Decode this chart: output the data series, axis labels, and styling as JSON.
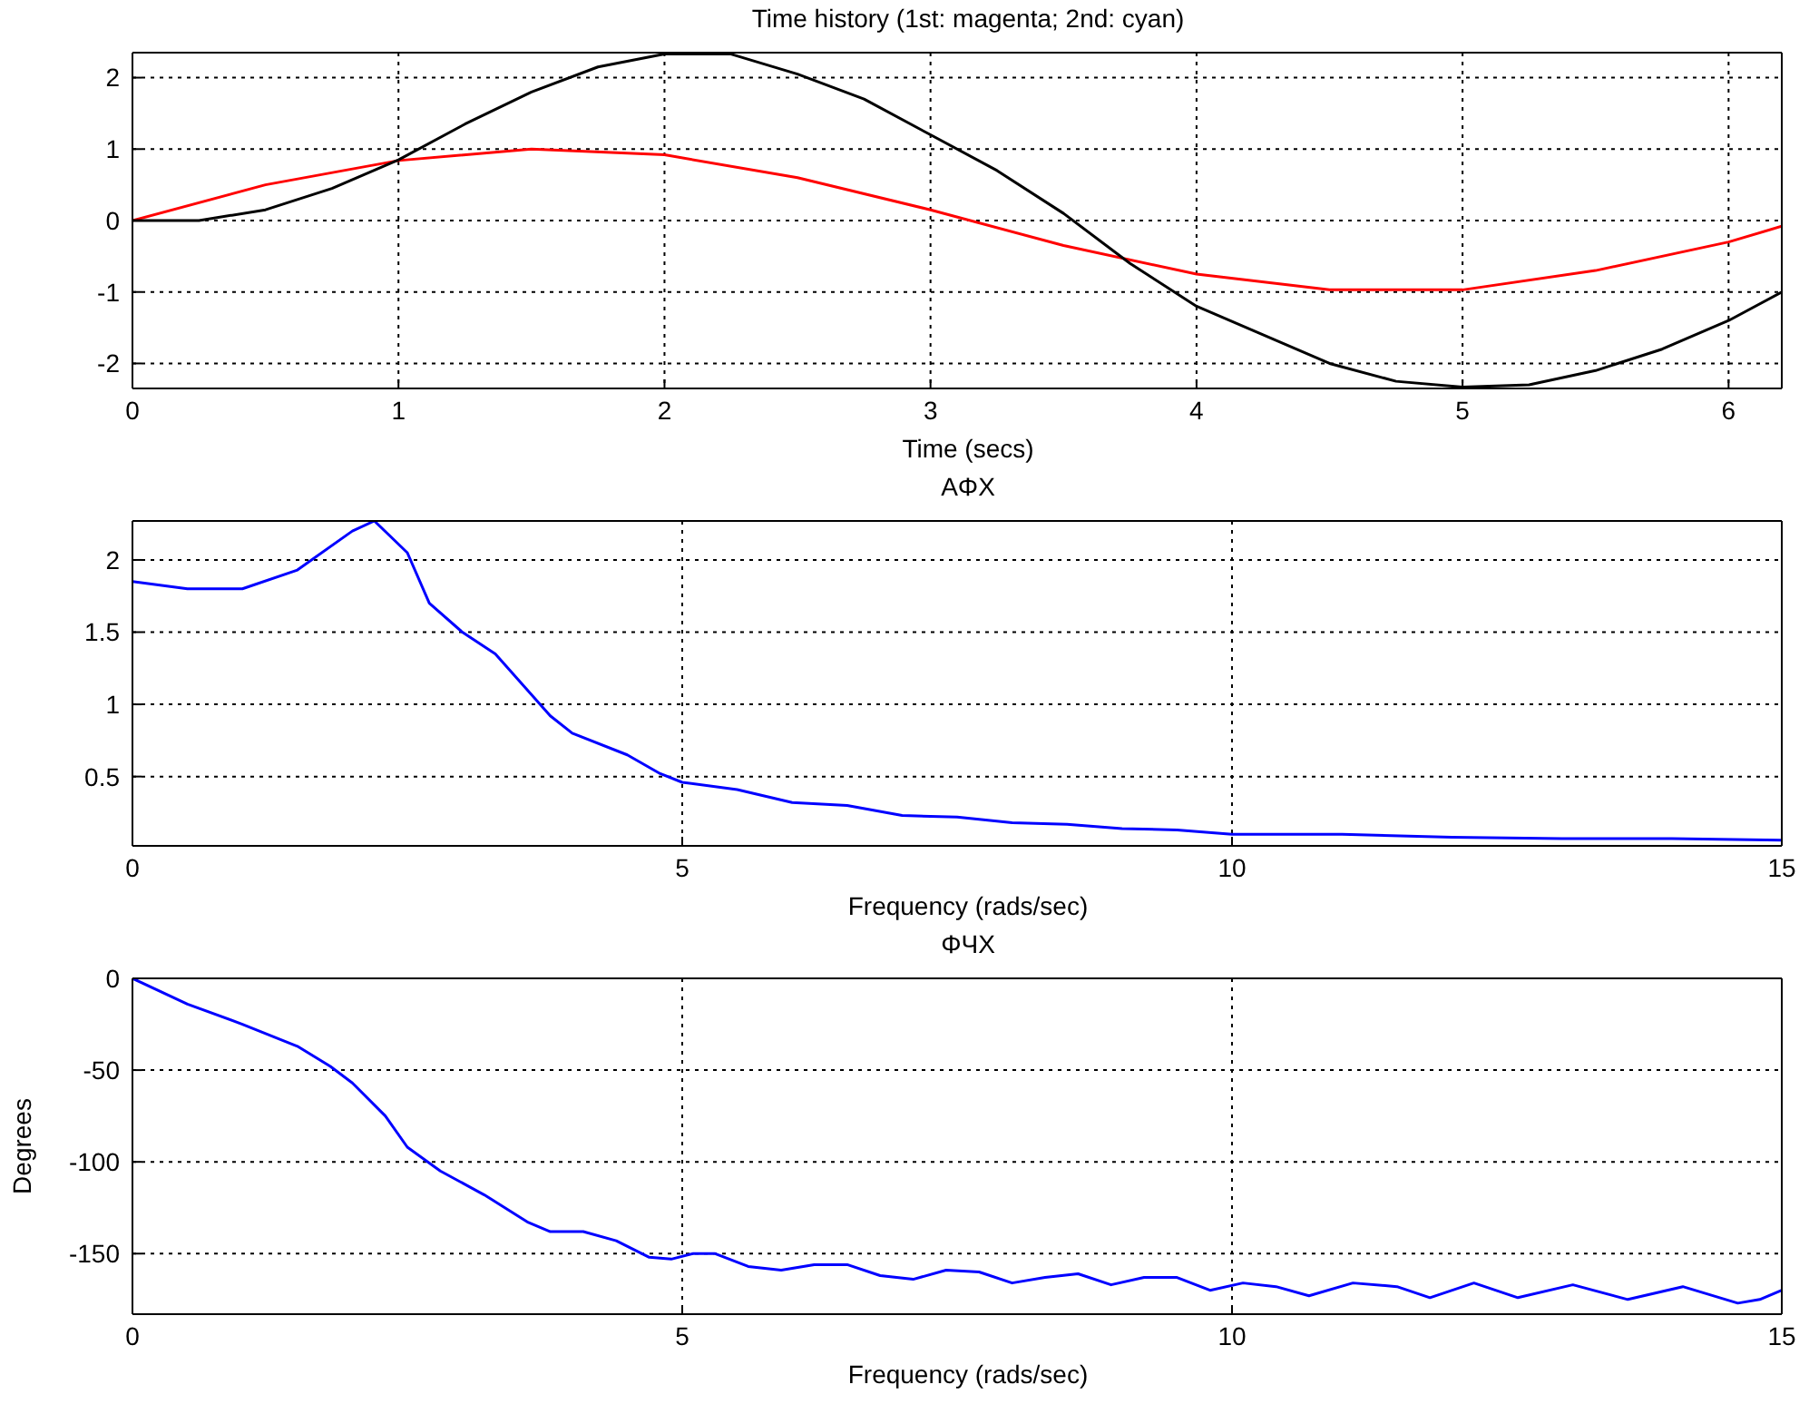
{
  "chart_data": [
    {
      "type": "line",
      "title": "Time history (1st: magenta; 2nd: cyan)",
      "xlabel": "Time (secs)",
      "xlim": [
        0,
        6.2
      ],
      "xticks": [
        0,
        1,
        2,
        3,
        4,
        5,
        6
      ],
      "ylim": [
        -2.35,
        2.35
      ],
      "yticks": [
        -2,
        -1,
        0,
        1,
        2
      ],
      "grid": true,
      "series": [
        {
          "color": "#ff0000",
          "x": [
            0,
            0.5,
            1,
            1.5,
            2,
            2.5,
            3,
            3.5,
            4,
            4.5,
            5,
            5.5,
            6,
            6.2
          ],
          "values": [
            0,
            0.5,
            0.84,
            1.0,
            0.92,
            0.6,
            0.15,
            -0.35,
            -0.75,
            -0.97,
            -0.97,
            -0.7,
            -0.3,
            -0.08
          ]
        },
        {
          "color": "#000000",
          "x": [
            0,
            0.25,
            0.5,
            0.75,
            1,
            1.25,
            1.5,
            1.75,
            2,
            2.25,
            2.5,
            2.75,
            3,
            3.25,
            3.5,
            3.75,
            4,
            4.25,
            4.5,
            4.75,
            5,
            5.25,
            5.5,
            5.75,
            6,
            6.2
          ],
          "values": [
            0,
            0,
            0.15,
            0.45,
            0.85,
            1.35,
            1.8,
            2.15,
            2.33,
            2.33,
            2.05,
            1.7,
            1.2,
            0.7,
            0.1,
            -0.6,
            -1.2,
            -1.6,
            -2.0,
            -2.25,
            -2.33,
            -2.3,
            -2.1,
            -1.8,
            -1.4,
            -1.0
          ]
        }
      ]
    },
    {
      "type": "line",
      "title": "AΦX",
      "xlabel": "Frequency (rads/sec)",
      "xlim": [
        0,
        15
      ],
      "xticks": [
        0,
        5,
        10,
        15
      ],
      "ylim": [
        0.02,
        2.27
      ],
      "yticks": [
        0.5,
        1,
        1.5,
        2
      ],
      "grid": true,
      "series": [
        {
          "color": "#0000ff",
          "x": [
            0,
            0.5,
            1,
            1.5,
            2,
            2.2,
            2.5,
            2.7,
            3,
            3.3,
            3.8,
            4,
            4.5,
            4.8,
            5,
            5.5,
            6,
            6.5,
            7,
            7.5,
            8,
            8.5,
            9,
            9.5,
            10,
            11,
            12,
            13,
            14,
            15
          ],
          "values": [
            1.85,
            1.8,
            1.8,
            1.93,
            2.2,
            2.27,
            2.05,
            1.7,
            1.5,
            1.35,
            0.92,
            0.8,
            0.65,
            0.52,
            0.46,
            0.41,
            0.32,
            0.3,
            0.23,
            0.22,
            0.18,
            0.17,
            0.14,
            0.13,
            0.1,
            0.1,
            0.08,
            0.07,
            0.07,
            0.06
          ]
        }
      ]
    },
    {
      "type": "line",
      "title": "ΦЧX",
      "xlabel": "Frequency (rads/sec)",
      "ylabel": "Degrees",
      "xlim": [
        0,
        15
      ],
      "xticks": [
        0,
        5,
        10,
        15
      ],
      "ylim": [
        -183,
        0
      ],
      "yticks": [
        -150,
        -100,
        -50,
        0
      ],
      "grid": true,
      "series": [
        {
          "color": "#0000ff",
          "x": [
            0,
            0.5,
            1,
            1.5,
            1.8,
            2,
            2.3,
            2.5,
            2.8,
            3.2,
            3.6,
            3.8,
            4.1,
            4.4,
            4.7,
            4.9,
            5.1,
            5.3,
            5.6,
            5.9,
            6.2,
            6.5,
            6.8,
            7.1,
            7.4,
            7.7,
            8,
            8.3,
            8.6,
            8.9,
            9.2,
            9.5,
            9.8,
            10.1,
            10.4,
            10.7,
            11.1,
            11.5,
            11.8,
            12.2,
            12.6,
            13.1,
            13.6,
            14.1,
            14.6,
            14.8,
            15
          ],
          "values": [
            0,
            -14,
            -25,
            -37,
            -48,
            -57,
            -75,
            -92,
            -105,
            -118,
            -133,
            -138,
            -138,
            -143,
            -152,
            -153,
            -150,
            -150,
            -157,
            -159,
            -156,
            -156,
            -162,
            -164,
            -159,
            -160,
            -166,
            -163,
            -161,
            -167,
            -163,
            -163,
            -170,
            -166,
            -168,
            -173,
            -166,
            -168,
            -174,
            -166,
            -174,
            -167,
            -175,
            -168,
            -177,
            -175,
            -170
          ]
        }
      ]
    }
  ]
}
